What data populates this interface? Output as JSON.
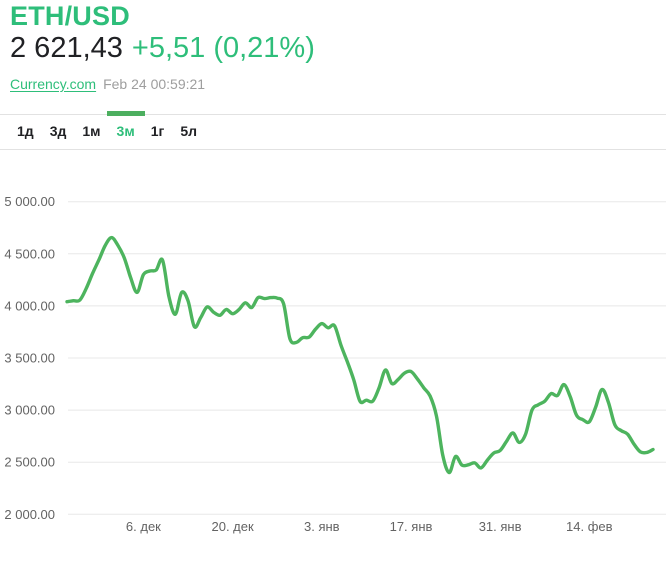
{
  "header": {
    "symbol": "ETH/USD",
    "price": "2 621,43",
    "change": "+5,51 (0,21%)",
    "source_link": "Currency.com",
    "timestamp": "Feb 24 00:59:21"
  },
  "range_tabs": {
    "items": [
      {
        "label": "1д",
        "active": false
      },
      {
        "label": "3д",
        "active": false
      },
      {
        "label": "1м",
        "active": false
      },
      {
        "label": "3м",
        "active": true
      },
      {
        "label": "1г",
        "active": false
      },
      {
        "label": "5л",
        "active": false
      }
    ]
  },
  "colors": {
    "accent_green": "#2ebe7a",
    "line_green": "#4db45e",
    "indicator_green": "#4caf5f",
    "price_text": "#202124",
    "axis_label": "#636363",
    "timestamp_gray": "#9e9e9e",
    "gridline": "#e8e8e8",
    "divider": "#e2e2e2"
  },
  "chart_data": {
    "type": "line",
    "title": "ETH/USD price, 3-month range",
    "grid": "horizontal",
    "legend": "none",
    "ylim": [
      2000,
      5000
    ],
    "x_range_days": 92,
    "series": [
      {
        "name": "ETH/USD",
        "values": [
          4040,
          4050,
          4055,
          4165,
          4310,
          4440,
          4580,
          4655,
          4580,
          4460,
          4270,
          4130,
          4300,
          4335,
          4345,
          4440,
          4090,
          3920,
          4130,
          4050,
          3800,
          3890,
          3990,
          3940,
          3910,
          3965,
          3925,
          3965,
          4030,
          3985,
          4080,
          4070,
          4080,
          4075,
          4020,
          3685,
          3650,
          3695,
          3700,
          3775,
          3830,
          3790,
          3810,
          3625,
          3465,
          3295,
          3085,
          3095,
          3085,
          3215,
          3385,
          3255,
          3295,
          3355,
          3370,
          3300,
          3215,
          3135,
          2945,
          2565,
          2400,
          2555,
          2472,
          2475,
          2493,
          2445,
          2520,
          2588,
          2612,
          2700,
          2780,
          2690,
          2770,
          3000,
          3052,
          3085,
          3158,
          3140,
          3245,
          3130,
          2950,
          2908,
          2888,
          3030,
          3198,
          3075,
          2860,
          2803,
          2770,
          2675,
          2600,
          2593,
          2621.43
        ]
      }
    ],
    "x_ticks": [
      {
        "label": "6. дек",
        "day": 12
      },
      {
        "label": "20. дек",
        "day": 26
      },
      {
        "label": "3. янв",
        "day": 40
      },
      {
        "label": "17. янв",
        "day": 54
      },
      {
        "label": "31. янв",
        "day": 68
      },
      {
        "label": "14. фев",
        "day": 82
      }
    ],
    "y_ticks": [
      {
        "label": "5 000.00",
        "value": 5000
      },
      {
        "label": "4 500.00",
        "value": 4500
      },
      {
        "label": "4 000.00",
        "value": 4000
      },
      {
        "label": "3 500.00",
        "value": 3500
      },
      {
        "label": "3 000.00",
        "value": 3000
      },
      {
        "label": "2 500.00",
        "value": 2500
      },
      {
        "label": "2 000.00",
        "value": 2000
      }
    ]
  }
}
